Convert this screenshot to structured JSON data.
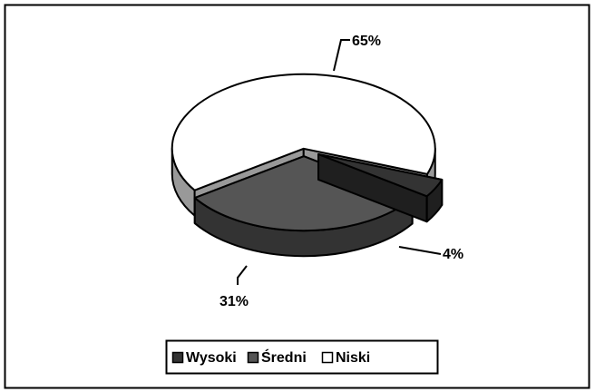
{
  "chart_data": {
    "type": "pie3d",
    "categories": [
      "Wysoki",
      "Średni",
      "Niski"
    ],
    "values": [
      4,
      31,
      65
    ],
    "value_labels": [
      "4%",
      "31%",
      "65%"
    ],
    "colors": [
      "#333333",
      "#555555",
      "#ffffff"
    ],
    "legend": "bottom"
  }
}
